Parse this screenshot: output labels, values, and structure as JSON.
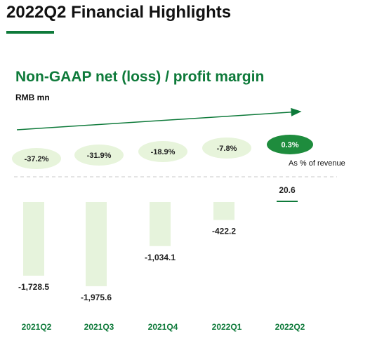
{
  "page": {
    "title": "2022Q2 Financial Highlights",
    "subtitle": "Non-GAAP net (loss) / profit margin",
    "unit": "RMB mn",
    "margin_note": "As % of revenue"
  },
  "colors": {
    "brand_green": "#0e7a3a",
    "bar_fill": "#e6f3dc",
    "bubble_fill": "#e7f4db",
    "highlight_bubble": "#1e8c3d",
    "baseline_dash": "#c8c8c8"
  },
  "chart_data": {
    "type": "bar",
    "title": "Non-GAAP net (loss) / profit margin",
    "ylabel": "RMB mn",
    "categories": [
      "2021Q2",
      "2021Q3",
      "2021Q4",
      "2022Q1",
      "2022Q2"
    ],
    "series": [
      {
        "values": [
          -1728.5,
          -1975.6,
          -1034.1,
          -422.2,
          20.6
        ],
        "value_labels": [
          "-1,728.5",
          "-1,975.6",
          "-1,034.1",
          "-422.2",
          "20.6"
        ]
      }
    ],
    "margins": [
      -37.2,
      -31.9,
      -18.9,
      -7.8,
      0.3
    ],
    "margin_labels": [
      "-37.2%",
      "-31.9%",
      "-18.9%",
      "-7.8%",
      "0.3%"
    ],
    "highlight_index": 4,
    "ylim": [
      -2100,
      60
    ],
    "grid": false,
    "trend_arrow": true
  }
}
